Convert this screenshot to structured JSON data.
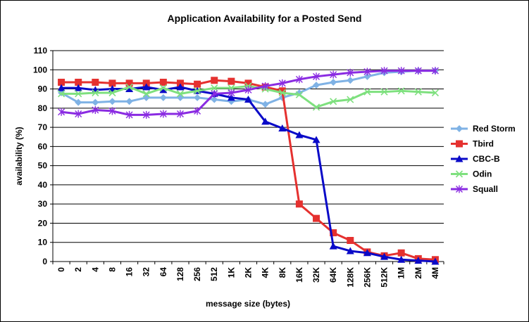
{
  "chart_data": {
    "type": "line",
    "title": "Application Availability for a Posted Send",
    "xlabel": "message size (bytes)",
    "ylabel": "availability (%)",
    "ylim": [
      0,
      110
    ],
    "yticks": [
      0,
      10,
      20,
      30,
      40,
      50,
      60,
      70,
      80,
      90,
      100,
      110
    ],
    "grid": "horizontal",
    "legend_position": "right",
    "categories": [
      "0",
      "2",
      "4",
      "8",
      "16",
      "32",
      "64",
      "128",
      "256",
      "512",
      "1K",
      "2K",
      "4K",
      "8K",
      "16K",
      "32K",
      "64K",
      "128K",
      "256K",
      "512K",
      "1M",
      "2M",
      "4M"
    ],
    "series": [
      {
        "name": "Red Storm",
        "color": "#7fb2e5",
        "marker": "diamond",
        "values": [
          88,
          83,
          83,
          83.5,
          83.5,
          85.5,
          85.5,
          85.5,
          85.5,
          84.5,
          83.5,
          84.5,
          82,
          85.5,
          88,
          92,
          93.5,
          94.5,
          96.5,
          98.5,
          99,
          99.5,
          99.5
        ]
      },
      {
        "name": "Tbird",
        "color": "#e5312f",
        "marker": "square",
        "values": [
          93.5,
          93.5,
          93.5,
          93,
          93,
          93,
          93.5,
          93,
          92.5,
          94.5,
          94,
          93,
          91,
          89,
          30,
          22.5,
          15,
          11,
          5,
          3,
          4.5,
          1.5,
          1
        ]
      },
      {
        "name": "CBC-B",
        "color": "#0a0ac8",
        "marker": "triangle",
        "values": [
          90.5,
          90.5,
          89.5,
          90,
          90,
          91,
          89.5,
          91,
          89,
          87.5,
          85.5,
          84.5,
          73,
          69.5,
          66,
          63.5,
          8,
          5.5,
          4.5,
          2.5,
          1,
          0.5,
          0
        ]
      },
      {
        "name": "Odin",
        "color": "#7ee07e",
        "marker": "x",
        "values": [
          87.5,
          87.5,
          88,
          88,
          91,
          87.5,
          90.5,
          87.5,
          89,
          90.5,
          90.5,
          91.5,
          90,
          88,
          87,
          80.5,
          83.5,
          84.5,
          88.5,
          88.5,
          89,
          88.5,
          88
        ]
      },
      {
        "name": "Squall",
        "color": "#8a2be2",
        "marker": "star",
        "values": [
          78,
          77,
          79,
          78.5,
          76.5,
          76.5,
          77,
          77,
          78.5,
          87.5,
          88,
          89.5,
          91.5,
          93,
          95,
          96.5,
          97.5,
          98.5,
          99,
          99.5,
          99.5,
          99.5,
          99.5
        ]
      }
    ]
  }
}
